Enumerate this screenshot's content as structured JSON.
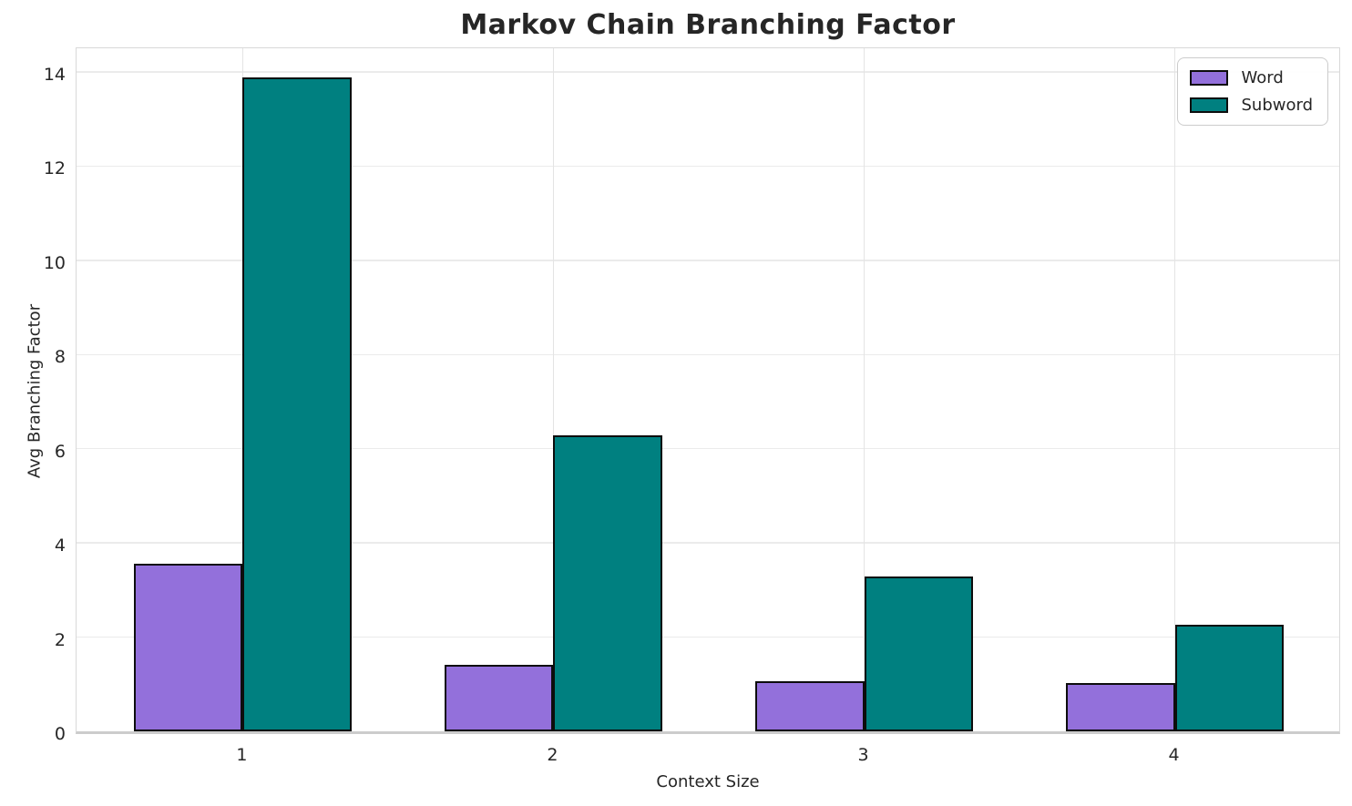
{
  "chart_data": {
    "type": "bar",
    "title": "Markov Chain Branching Factor",
    "xlabel": "Context Size",
    "ylabel": "Avg Branching Factor",
    "categories": [
      "1",
      "2",
      "3",
      "4"
    ],
    "series": [
      {
        "name": "Word",
        "color": "#9370DB",
        "values": [
          3.55,
          1.41,
          1.06,
          1.02
        ]
      },
      {
        "name": "Subword",
        "color": "#008080",
        "values": [
          13.88,
          6.29,
          3.29,
          2.26
        ]
      }
    ],
    "ylim": [
      0,
      14.58
    ],
    "yticks": [
      0,
      2,
      4,
      6,
      8,
      10,
      12,
      14
    ],
    "xlim": [
      0.465,
      4.535
    ],
    "bar_width": 0.35,
    "bar_edge_color": "#0d0d0d",
    "grid": true,
    "legend_position": "upper right",
    "legend_labels": [
      "Word",
      "Subword"
    ]
  }
}
